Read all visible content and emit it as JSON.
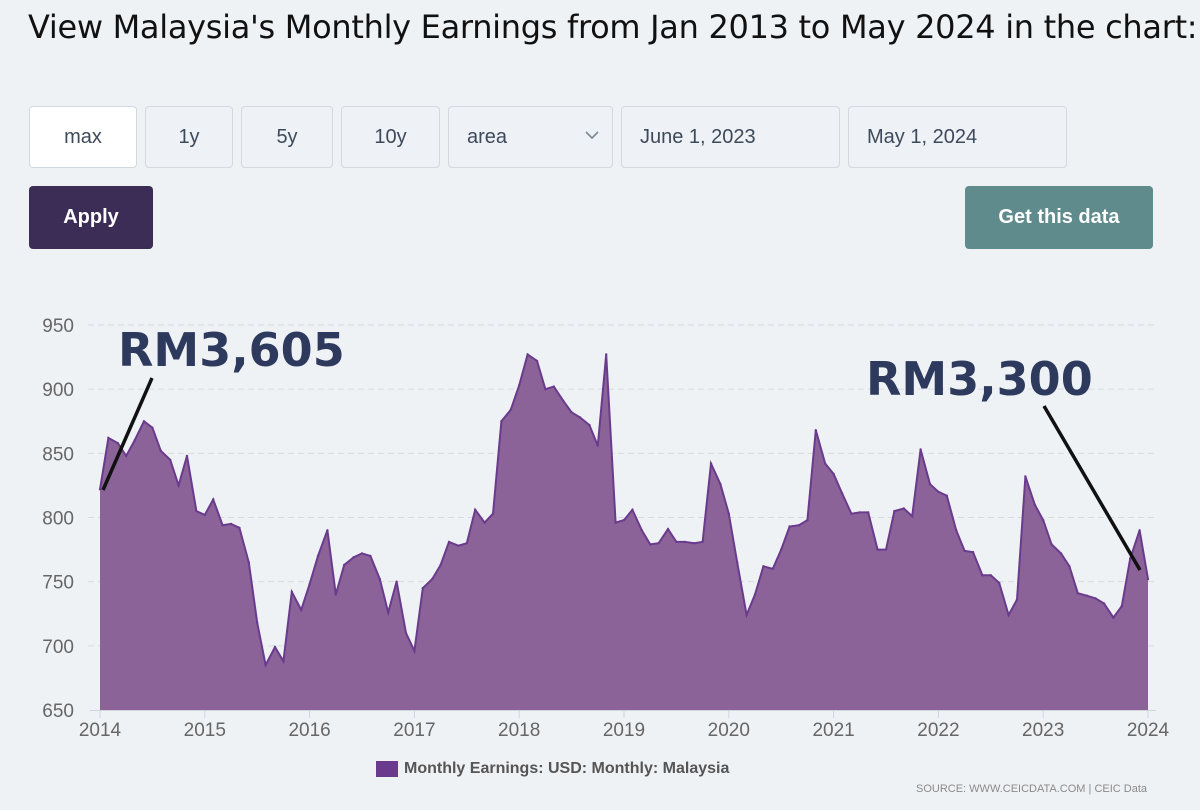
{
  "title": "View Malaysia's Monthly Earnings from Jan 2013 to May 2024 in the chart:",
  "controls": {
    "range_buttons": [
      "max",
      "1y",
      "5y",
      "10y"
    ],
    "chart_type": "area",
    "start_date": "June 1, 2023",
    "end_date": "May 1, 2024",
    "apply_label": "Apply",
    "get_data_label": "Get this data"
  },
  "annotations": {
    "left_value": "RM3,605",
    "right_value": "RM3,300"
  },
  "legend_label": "Monthly Earnings: USD: Monthly: Malaysia",
  "source": "SOURCE: WWW.CEICDATA.COM | CEIC Data",
  "colors": {
    "area_fill": "#8b6399",
    "area_line": "#6a3b8c",
    "apply_bg": "#3c2d57",
    "get_data_bg": "#5f8b8d",
    "annotation_text": "#2d3a5e"
  },
  "chart_data": {
    "type": "area",
    "x_ticks": [
      "2014",
      "2015",
      "2016",
      "2017",
      "2018",
      "2019",
      "2020",
      "2021",
      "2022",
      "2023",
      "2024"
    ],
    "ylim": [
      650,
      950
    ],
    "y_ticks": [
      650,
      700,
      750,
      800,
      850,
      900,
      950
    ],
    "grid": true,
    "legend_position": "bottom",
    "series": [
      {
        "name": "Monthly Earnings: USD: Monthly: Malaysia",
        "points": [
          [
            2014.0,
            822
          ],
          [
            2014.08,
            862
          ],
          [
            2014.17,
            858
          ],
          [
            2014.25,
            848
          ],
          [
            2014.33,
            860
          ],
          [
            2014.42,
            875
          ],
          [
            2014.5,
            870
          ],
          [
            2014.58,
            852
          ],
          [
            2014.67,
            845
          ],
          [
            2014.75,
            825
          ],
          [
            2014.83,
            848
          ],
          [
            2014.92,
            805
          ],
          [
            2015.0,
            802
          ],
          [
            2015.08,
            814
          ],
          [
            2015.17,
            794
          ],
          [
            2015.25,
            795
          ],
          [
            2015.33,
            792
          ],
          [
            2015.42,
            765
          ],
          [
            2015.5,
            718
          ],
          [
            2015.58,
            685
          ],
          [
            2015.67,
            699
          ],
          [
            2015.75,
            688
          ],
          [
            2015.83,
            742
          ],
          [
            2015.92,
            728
          ],
          [
            2016.0,
            748
          ],
          [
            2016.08,
            770
          ],
          [
            2016.17,
            790
          ],
          [
            2016.25,
            740
          ],
          [
            2016.33,
            763
          ],
          [
            2016.42,
            769
          ],
          [
            2016.5,
            772
          ],
          [
            2016.58,
            770
          ],
          [
            2016.67,
            752
          ],
          [
            2016.75,
            726
          ],
          [
            2016.83,
            750
          ],
          [
            2016.92,
            710
          ],
          [
            2017.0,
            696
          ],
          [
            2017.08,
            745
          ],
          [
            2017.17,
            752
          ],
          [
            2017.25,
            763
          ],
          [
            2017.33,
            781
          ],
          [
            2017.42,
            778
          ],
          [
            2017.5,
            780
          ],
          [
            2017.58,
            806
          ],
          [
            2017.67,
            796
          ],
          [
            2017.75,
            803
          ],
          [
            2017.83,
            875
          ],
          [
            2017.92,
            884
          ],
          [
            2018.0,
            903
          ],
          [
            2018.08,
            927
          ],
          [
            2018.17,
            922
          ],
          [
            2018.25,
            900
          ],
          [
            2018.33,
            902
          ],
          [
            2018.42,
            891
          ],
          [
            2018.5,
            882
          ],
          [
            2018.58,
            878
          ],
          [
            2018.67,
            872
          ],
          [
            2018.75,
            856
          ],
          [
            2018.83,
            927
          ],
          [
            2018.92,
            796
          ],
          [
            2019.0,
            798
          ],
          [
            2019.08,
            806
          ],
          [
            2019.17,
            790
          ],
          [
            2019.25,
            779
          ],
          [
            2019.33,
            780
          ],
          [
            2019.42,
            791
          ],
          [
            2019.5,
            781
          ],
          [
            2019.58,
            781
          ],
          [
            2019.67,
            780
          ],
          [
            2019.75,
            781
          ],
          [
            2019.83,
            842
          ],
          [
            2019.92,
            826
          ],
          [
            2020.0,
            803
          ],
          [
            2020.08,
            765
          ],
          [
            2020.17,
            724
          ],
          [
            2020.25,
            740
          ],
          [
            2020.33,
            762
          ],
          [
            2020.42,
            760
          ],
          [
            2020.5,
            775
          ],
          [
            2020.58,
            793
          ],
          [
            2020.67,
            794
          ],
          [
            2020.75,
            798
          ],
          [
            2020.83,
            868
          ],
          [
            2020.92,
            842
          ],
          [
            2021.0,
            834
          ],
          [
            2021.08,
            819
          ],
          [
            2021.17,
            803
          ],
          [
            2021.25,
            804
          ],
          [
            2021.33,
            804
          ],
          [
            2021.42,
            775
          ],
          [
            2021.5,
            775
          ],
          [
            2021.58,
            805
          ],
          [
            2021.67,
            807
          ],
          [
            2021.75,
            801
          ],
          [
            2021.83,
            853
          ],
          [
            2021.92,
            826
          ],
          [
            2022.0,
            820
          ],
          [
            2022.08,
            817
          ],
          [
            2022.17,
            790
          ],
          [
            2022.25,
            774
          ],
          [
            2022.33,
            773
          ],
          [
            2022.42,
            755
          ],
          [
            2022.5,
            755
          ],
          [
            2022.58,
            749
          ],
          [
            2022.67,
            724
          ],
          [
            2022.75,
            736
          ],
          [
            2022.83,
            832
          ],
          [
            2022.92,
            810
          ],
          [
            2023.0,
            798
          ],
          [
            2023.08,
            779
          ],
          [
            2023.17,
            772
          ],
          [
            2023.25,
            762
          ],
          [
            2023.33,
            741
          ],
          [
            2023.42,
            739
          ],
          [
            2023.5,
            737
          ],
          [
            2023.58,
            733
          ],
          [
            2023.67,
            722
          ],
          [
            2023.75,
            731
          ],
          [
            2023.83,
            768
          ],
          [
            2023.92,
            790
          ],
          [
            2024.0,
            752
          ]
        ]
      }
    ]
  }
}
